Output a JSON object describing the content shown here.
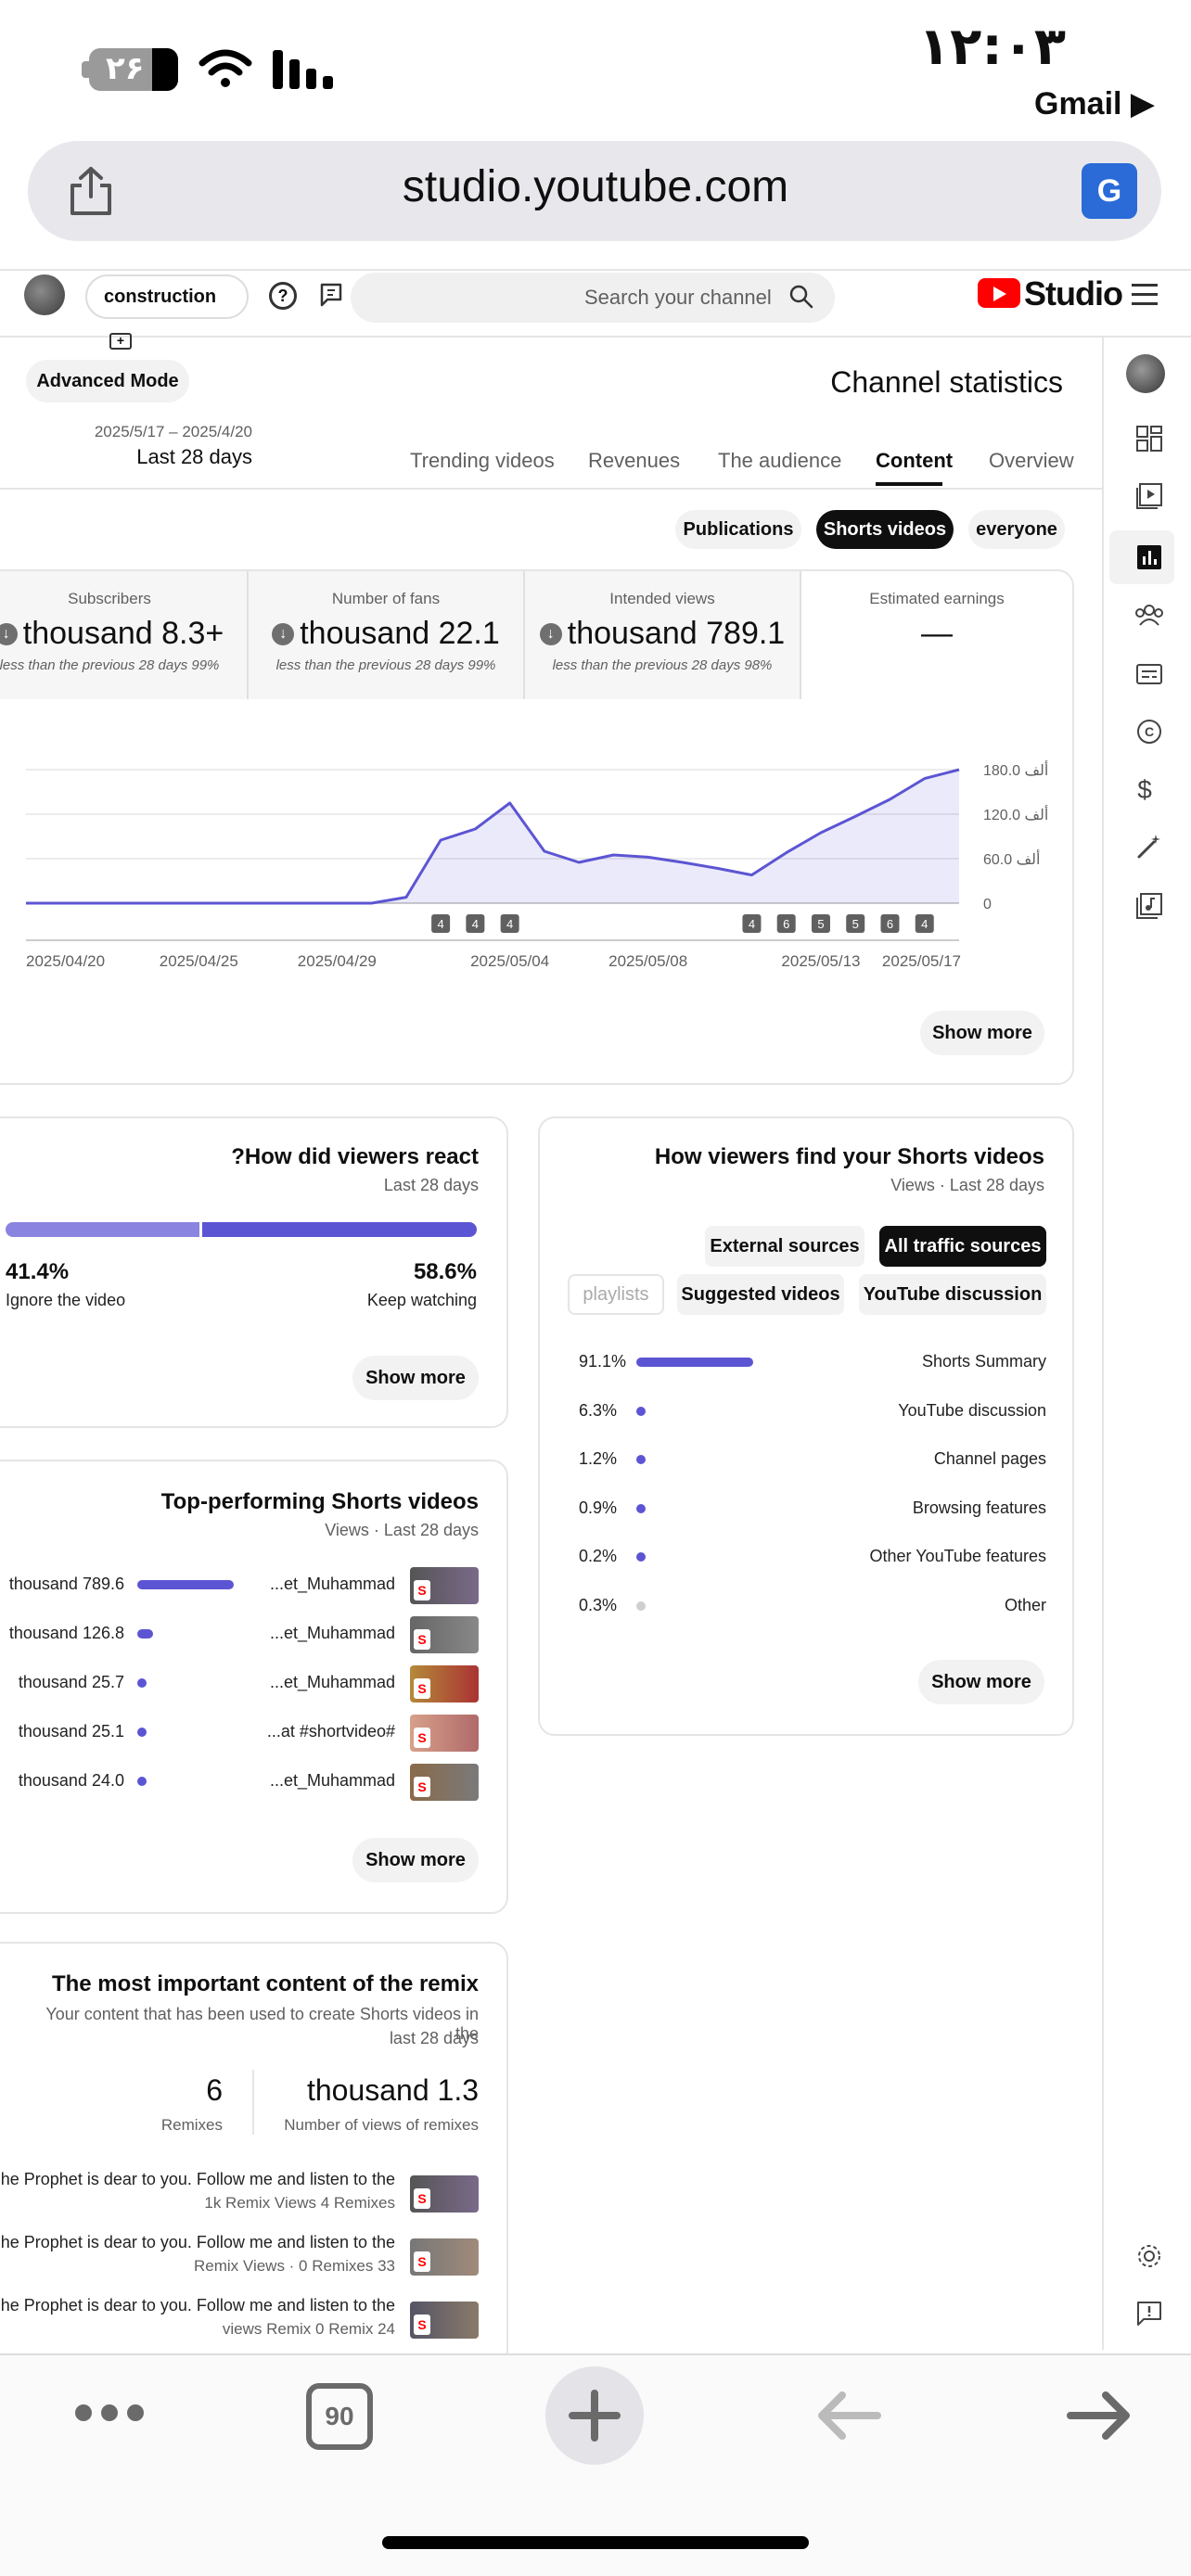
{
  "status_bar": {
    "time": "۱۲:۰۳",
    "battery": "۲۶",
    "back_app": "Gmail ▶"
  },
  "browser": {
    "url": "studio.youtube.com",
    "tab_count": "90"
  },
  "studio_header": {
    "channel_name": "construction",
    "search_placeholder": "Search your channel",
    "logo_text": "Studio"
  },
  "page": {
    "advanced_mode": "Advanced Mode",
    "title": "Channel statistics",
    "date_range": "2025/5/17 – 2025/4/20",
    "date_label": "Last 28 days",
    "tabs": [
      "Trending videos",
      "Revenues",
      "The audience",
      "Content",
      "Overview"
    ],
    "active_tab": "Content",
    "filters": [
      "Publications",
      "Shorts videos",
      "everyone"
    ],
    "active_filter": "Shorts videos"
  },
  "kpis": [
    {
      "label": "Subscribers",
      "value": "thousand 8.3+",
      "sub": "less than the previous 28 days 99%"
    },
    {
      "label": "Number of fans",
      "value": "thousand 22.1",
      "sub": "less than the previous 28 days 99%"
    },
    {
      "label": "Intended views",
      "value": "thousand 789.1",
      "sub": "less than the previous 28 days 98%"
    },
    {
      "label": "Estimated earnings",
      "value": "—",
      "sub": ""
    }
  ],
  "chart_data": {
    "type": "area",
    "x_ticks": [
      "2025/04/20",
      "2025/04/25",
      "2025/04/29",
      "2025/05/04",
      "2025/05/08",
      "2025/05/13",
      "2025/05/17"
    ],
    "y_ticks": [
      "0",
      "60.0 ألف",
      "120.0 ألف",
      "180.0 ألف"
    ],
    "ylim": [
      0,
      180000
    ],
    "values": [
      0,
      0,
      0,
      0,
      0,
      0,
      0,
      0,
      0,
      0,
      0,
      8000,
      85000,
      100000,
      135000,
      70000,
      55000,
      65000,
      62000,
      55000,
      47000,
      38000,
      68000,
      95000,
      117000,
      140000,
      168000,
      180000
    ],
    "markers": [
      {
        "day": 12,
        "label": "4"
      },
      {
        "day": 13,
        "label": "4"
      },
      {
        "day": 14,
        "label": "4"
      },
      {
        "day": 21,
        "label": "4"
      },
      {
        "day": 22,
        "label": "6"
      },
      {
        "day": 23,
        "label": "5"
      },
      {
        "day": 24,
        "label": "5"
      },
      {
        "day": 25,
        "label": "6"
      },
      {
        "day": 26,
        "label": "4"
      }
    ],
    "color": "#5c55d3"
  },
  "show_more": "Show more",
  "reaction": {
    "title": "?How did viewers react",
    "subtitle": "Last 28 days",
    "ignore_pct": "41.4%",
    "ignore_label": "Ignore the video",
    "keep_pct": "58.6%",
    "keep_label": "Keep watching",
    "ignore_value": 41.4,
    "keep_value": 58.6
  },
  "traffic": {
    "title": "How viewers find your Shorts videos",
    "subtitle": "Views · Last 28 days",
    "chips_row1": [
      "External sources",
      "All traffic sources"
    ],
    "chips_row2": [
      "playlists",
      "Suggested videos",
      "YouTube discussion"
    ],
    "rows": [
      {
        "pct": "91.1%",
        "label": "Shorts Summary",
        "value": 91.1
      },
      {
        "pct": "6.3%",
        "label": "YouTube discussion",
        "value": 6.3
      },
      {
        "pct": "1.2%",
        "label": "Channel pages",
        "value": 1.2
      },
      {
        "pct": "0.9%",
        "label": "Browsing features",
        "value": 0.9
      },
      {
        "pct": "0.2%",
        "label": "Other YouTube features",
        "value": 0.2
      },
      {
        "pct": "0.3%",
        "label": "Other",
        "value": 0.3
      }
    ]
  },
  "top_videos": {
    "title": "Top-performing Shorts videos",
    "subtitle": "Views · Last 28 days",
    "rows": [
      {
        "views": "thousand 789.6",
        "title": "...et_Muhammad",
        "value": 789.6
      },
      {
        "views": "thousand 126.8",
        "title": "...et_Muhammad",
        "value": 126.8
      },
      {
        "views": "thousand 25.7",
        "title": "...et_Muhammad",
        "value": 25.7
      },
      {
        "views": "thousand 25.1",
        "title": "...at #shortvideo#",
        "value": 25.1
      },
      {
        "views": "thousand 24.0",
        "title": "...et_Muhammad",
        "value": 24.0
      }
    ]
  },
  "remix": {
    "title": "The most important content of the remix",
    "subtitle_1": "Your content that has been used to create Shorts videos in the",
    "subtitle_2": "last 28 days",
    "remixes_value": "6",
    "remixes_label": "Remixes",
    "views_value": "thousand 1.3",
    "views_label": "Number of views of remixes",
    "rows": [
      {
        "title": "...he Prophet is dear to you. Follow me and listen to the",
        "meta": "1k Remix Views 4 Remixes"
      },
      {
        "title": "...he Prophet is dear to you. Follow me and listen to the",
        "meta": "Remix Views · 0 Remixes 33"
      },
      {
        "title": "...he Prophet is dear to you. Follow me and listen to the",
        "meta": "views Remix 0 Remix 24"
      }
    ]
  }
}
